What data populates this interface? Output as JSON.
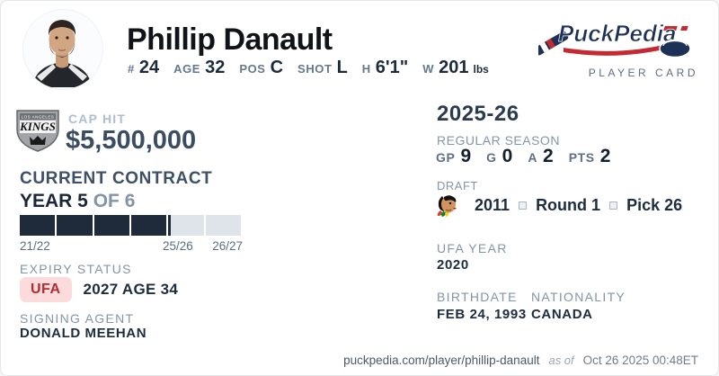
{
  "header": {
    "name": "Phillip Danault",
    "stats": [
      {
        "label": "#",
        "value": "24"
      },
      {
        "label": "AGE",
        "value": "32"
      },
      {
        "label": "POS",
        "value": "C"
      },
      {
        "label": "SHOT",
        "value": "L"
      },
      {
        "label": "H",
        "value": "6'1\""
      },
      {
        "label": "W",
        "value": "201",
        "suffix": "lbs"
      }
    ],
    "brand": {
      "logo_text": "PuckPedia",
      "subtitle": "PLAYER CARD"
    }
  },
  "left": {
    "team_logo_name": "la-kings-logo",
    "team_logo_text": "KINGS",
    "cap_hit_label": "CAP HIT",
    "cap_hit_value": "$5,500,000",
    "section_title": "CURRENT CONTRACT",
    "year_now": "YEAR 5",
    "year_of": "OF 6",
    "contract": {
      "total_years": 6,
      "completed_years": 4,
      "current_year_progress": 0.08,
      "label_start": "21/22",
      "label_current": "25/26",
      "label_end": "26/27"
    },
    "expiry": {
      "label": "EXPIRY STATUS",
      "badge": "UFA",
      "detail": "2027 AGE 34"
    },
    "agent": {
      "label": "SIGNING AGENT",
      "value": "DONALD MEEHAN"
    }
  },
  "right": {
    "season_title": "2025-26",
    "regular_season_label": "REGULAR SEASON",
    "season_stats": [
      {
        "label": "GP",
        "value": "9"
      },
      {
        "label": "G",
        "value": "0"
      },
      {
        "label": "A",
        "value": "2"
      },
      {
        "label": "PTS",
        "value": "2"
      }
    ],
    "draft": {
      "label": "DRAFT",
      "team_logo_name": "chicago-blackhawks-logo",
      "year": "2011",
      "round": "Round 1",
      "pick": "Pick 26"
    },
    "ufa_year": {
      "label": "UFA YEAR",
      "value": "2020"
    },
    "birthdate": {
      "label": "BIRTHDATE",
      "value": "FEB 24, 1993"
    },
    "nationality": {
      "label": "NATIONALITY",
      "value": "CANADA"
    }
  },
  "footer": {
    "url": "puckpedia.com/player/phillip-danault",
    "as_of_label": "as of",
    "timestamp": "Oct 26 2025 00:48ET"
  },
  "colors": {
    "dark_navy": "#1e2b3d",
    "slate_heading": "#3e5065",
    "muted_label": "#8494a7",
    "cap_hit_label": "#aebdcf",
    "bar_filled": "#1f2a3a",
    "bar_empty": "#dfe4ea",
    "badge_bg": "#fbdbdb",
    "badge_text": "#b12b31",
    "brand_navy": "#1d3157",
    "brand_red": "#c52a33"
  }
}
